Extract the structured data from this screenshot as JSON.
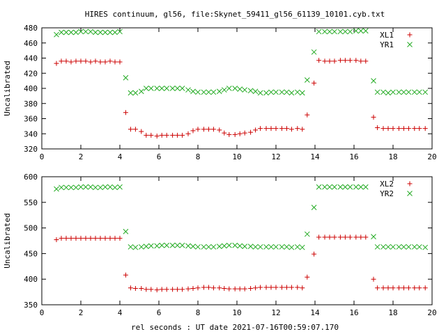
{
  "title": "HIRES continuum, gl56, file:Skynet_59411_gl56_61139_10101.cyb.txt",
  "xlabel": "rel seconds : UT date 2021-07-16T00:59:07.170",
  "colors": {
    "red": "#cc0000",
    "green": "#22aa22"
  },
  "chart_data": [
    {
      "type": "scatter",
      "ylabel": "Uncalibrated",
      "xlim": [
        0,
        20
      ],
      "ylim": [
        320,
        480
      ],
      "xticks": [
        0,
        2,
        4,
        6,
        8,
        10,
        12,
        14,
        16,
        18,
        20
      ],
      "yticks": [
        320,
        340,
        360,
        380,
        400,
        420,
        440,
        460,
        480
      ],
      "grid": false,
      "legend": "top-right",
      "series": [
        {
          "name": "XL1",
          "marker": "plus",
          "color": "#cc0000",
          "x": [
            0.75,
            1.0,
            1.25,
            1.5,
            1.75,
            2.0,
            2.25,
            2.5,
            2.75,
            3.0,
            3.25,
            3.5,
            3.75,
            4.0,
            4.3,
            4.55,
            4.8,
            5.1,
            5.35,
            5.6,
            5.9,
            6.15,
            6.4,
            6.7,
            6.95,
            7.2,
            7.5,
            7.75,
            8.0,
            8.3,
            8.55,
            8.8,
            9.1,
            9.35,
            9.6,
            9.9,
            10.15,
            10.4,
            10.7,
            10.95,
            11.2,
            11.5,
            11.75,
            12.0,
            12.3,
            12.55,
            12.8,
            13.1,
            13.35,
            13.6,
            13.95,
            14.2,
            14.5,
            14.75,
            15.0,
            15.3,
            15.55,
            15.8,
            16.1,
            16.35,
            16.6,
            17.0,
            17.2,
            17.5,
            17.75,
            18.0,
            18.3,
            18.55,
            18.8,
            19.1,
            19.35,
            19.65
          ],
          "y": [
            433,
            436,
            436,
            435,
            436,
            436,
            436,
            435,
            436,
            435,
            435,
            436,
            435,
            435,
            368,
            346,
            346,
            343,
            338,
            338,
            337,
            338,
            338,
            338,
            338,
            338,
            340,
            344,
            346,
            346,
            346,
            346,
            345,
            341,
            339,
            339,
            340,
            341,
            342,
            345,
            347,
            347,
            347,
            347,
            347,
            347,
            346,
            347,
            346,
            365,
            407,
            437,
            436,
            436,
            436,
            437,
            437,
            437,
            437,
            436,
            436,
            362,
            348,
            347,
            347,
            347,
            347,
            347,
            347,
            347,
            347,
            347
          ]
        },
        {
          "name": "YR1",
          "marker": "cross",
          "color": "#22aa22",
          "x": [
            0.75,
            1.0,
            1.25,
            1.5,
            1.75,
            2.0,
            2.25,
            2.5,
            2.75,
            3.0,
            3.25,
            3.5,
            3.75,
            4.0,
            4.3,
            4.55,
            4.8,
            5.1,
            5.35,
            5.6,
            5.9,
            6.15,
            6.4,
            6.7,
            6.95,
            7.2,
            7.5,
            7.75,
            8.0,
            8.3,
            8.55,
            8.8,
            9.1,
            9.35,
            9.6,
            9.9,
            10.15,
            10.4,
            10.7,
            10.95,
            11.2,
            11.5,
            11.75,
            12.0,
            12.3,
            12.55,
            12.8,
            13.1,
            13.35,
            13.6,
            13.95,
            14.2,
            14.5,
            14.75,
            15.0,
            15.3,
            15.55,
            15.8,
            16.1,
            16.35,
            16.6,
            17.0,
            17.2,
            17.5,
            17.75,
            18.0,
            18.3,
            18.55,
            18.8,
            19.1,
            19.35,
            19.65
          ],
          "y": [
            471,
            474,
            474,
            474,
            474,
            475,
            475,
            475,
            474,
            474,
            474,
            474,
            474,
            475,
            414,
            394,
            394,
            396,
            400,
            400,
            400,
            400,
            400,
            400,
            400,
            400,
            398,
            396,
            395,
            395,
            395,
            395,
            396,
            398,
            400,
            400,
            399,
            398,
            397,
            396,
            394,
            394,
            395,
            395,
            395,
            395,
            394,
            395,
            394,
            411,
            448,
            475,
            475,
            475,
            475,
            475,
            475,
            475,
            476,
            476,
            476,
            410,
            395,
            395,
            394,
            395,
            395,
            395,
            395,
            395,
            395,
            395
          ]
        }
      ]
    },
    {
      "type": "scatter",
      "ylabel": "Uncalibrated",
      "xlim": [
        0,
        20
      ],
      "ylim": [
        350,
        600
      ],
      "xticks": [
        0,
        2,
        4,
        6,
        8,
        10,
        12,
        14,
        16,
        18,
        20
      ],
      "yticks": [
        350,
        400,
        450,
        500,
        550,
        600
      ],
      "grid": false,
      "legend": "top-right",
      "series": [
        {
          "name": "XL2",
          "marker": "plus",
          "color": "#cc0000",
          "x": [
            0.75,
            1.0,
            1.25,
            1.5,
            1.75,
            2.0,
            2.25,
            2.5,
            2.75,
            3.0,
            3.25,
            3.5,
            3.75,
            4.0,
            4.3,
            4.55,
            4.8,
            5.1,
            5.35,
            5.6,
            5.9,
            6.15,
            6.4,
            6.7,
            6.95,
            7.2,
            7.5,
            7.75,
            8.0,
            8.3,
            8.55,
            8.8,
            9.1,
            9.35,
            9.6,
            9.9,
            10.15,
            10.4,
            10.7,
            10.95,
            11.2,
            11.5,
            11.75,
            12.0,
            12.3,
            12.55,
            12.8,
            13.1,
            13.35,
            13.6,
            13.95,
            14.2,
            14.5,
            14.75,
            15.0,
            15.3,
            15.55,
            15.8,
            16.1,
            16.35,
            16.6,
            17.0,
            17.2,
            17.5,
            17.75,
            18.0,
            18.3,
            18.55,
            18.8,
            19.1,
            19.35,
            19.65
          ],
          "y": [
            477,
            480,
            480,
            480,
            480,
            480,
            480,
            480,
            480,
            480,
            480,
            480,
            480,
            480,
            408,
            383,
            382,
            382,
            380,
            380,
            379,
            380,
            380,
            380,
            380,
            380,
            381,
            382,
            383,
            384,
            384,
            383,
            383,
            382,
            381,
            381,
            381,
            381,
            382,
            383,
            384,
            384,
            384,
            384,
            384,
            384,
            384,
            384,
            383,
            404,
            449,
            482,
            482,
            482,
            482,
            482,
            482,
            482,
            482,
            482,
            482,
            400,
            383,
            383,
            383,
            383,
            383,
            383,
            383,
            383,
            383,
            383
          ]
        },
        {
          "name": "YR2",
          "marker": "cross",
          "color": "#22aa22",
          "x": [
            0.75,
            1.0,
            1.25,
            1.5,
            1.75,
            2.0,
            2.25,
            2.5,
            2.75,
            3.0,
            3.25,
            3.5,
            3.75,
            4.0,
            4.3,
            4.55,
            4.8,
            5.1,
            5.35,
            5.6,
            5.9,
            6.15,
            6.4,
            6.7,
            6.95,
            7.2,
            7.5,
            7.75,
            8.0,
            8.3,
            8.55,
            8.8,
            9.1,
            9.35,
            9.6,
            9.9,
            10.15,
            10.4,
            10.7,
            10.95,
            11.2,
            11.5,
            11.75,
            12.0,
            12.3,
            12.55,
            12.8,
            13.1,
            13.35,
            13.6,
            13.95,
            14.2,
            14.5,
            14.75,
            15.0,
            15.3,
            15.55,
            15.8,
            16.1,
            16.35,
            16.6,
            17.0,
            17.2,
            17.5,
            17.75,
            18.0,
            18.3,
            18.55,
            18.8,
            19.1,
            19.35,
            19.65
          ],
          "y": [
            576,
            579,
            579,
            579,
            579,
            580,
            580,
            580,
            579,
            579,
            580,
            580,
            579,
            580,
            493,
            463,
            462,
            463,
            464,
            465,
            465,
            466,
            466,
            466,
            466,
            466,
            465,
            464,
            463,
            463,
            463,
            463,
            464,
            465,
            466,
            466,
            465,
            464,
            464,
            463,
            463,
            463,
            463,
            463,
            463,
            463,
            462,
            463,
            462,
            488,
            540,
            580,
            580,
            580,
            580,
            580,
            580,
            580,
            580,
            580,
            580,
            483,
            463,
            463,
            463,
            463,
            463,
            463,
            463,
            463,
            463,
            462
          ]
        }
      ]
    }
  ]
}
